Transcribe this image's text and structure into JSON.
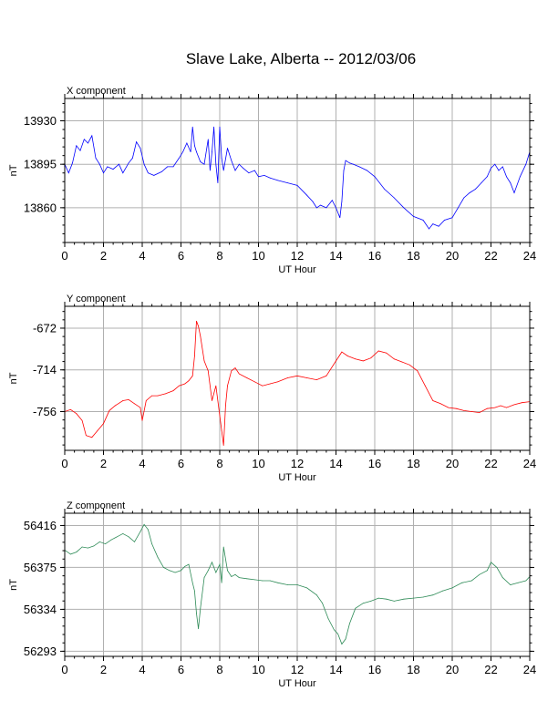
{
  "title": "Slave Lake, Alberta -- 2012/03/06",
  "chart_data": [
    {
      "type": "line",
      "title": "X component",
      "xlabel": "UT Hour",
      "ylabel": "nT",
      "xlim": [
        0,
        24
      ],
      "ylim": [
        13832,
        13948
      ],
      "xticks": [
        0,
        2,
        4,
        6,
        8,
        10,
        12,
        14,
        16,
        18,
        20,
        22,
        24
      ],
      "yticks": [
        13930,
        13895,
        13860
      ],
      "grid": true,
      "color": "#0000ff",
      "series": [
        {
          "x": [
            0,
            0.2,
            0.4,
            0.6,
            0.8,
            1.0,
            1.2,
            1.4,
            1.6,
            1.8,
            2.0,
            2.2,
            2.5,
            2.8,
            3.0,
            3.3,
            3.5,
            3.7,
            3.9,
            4.1,
            4.3,
            4.6,
            5.0,
            5.3,
            5.6,
            5.9,
            6.1,
            6.3,
            6.5,
            6.6,
            6.7,
            6.8,
            7.0,
            7.2,
            7.4,
            7.5,
            7.6,
            7.7,
            7.8,
            7.9,
            8.0,
            8.1,
            8.2,
            8.4,
            8.6,
            8.8,
            9.0,
            9.2,
            9.5,
            9.8,
            10.0,
            10.3,
            10.6,
            11.0,
            11.5,
            12.0,
            12.5,
            12.8,
            13.0,
            13.2,
            13.5,
            13.8,
            14.0,
            14.2,
            14.3,
            14.4,
            14.5,
            14.7,
            14.9,
            15.2,
            15.6,
            16.0,
            16.5,
            17.0,
            17.5,
            18.0,
            18.5,
            18.8,
            19.0,
            19.3,
            19.6,
            20.0,
            20.3,
            20.6,
            20.9,
            21.2,
            21.5,
            21.8,
            22.0,
            22.2,
            22.4,
            22.6,
            22.8,
            23.0,
            23.2,
            23.5,
            23.8,
            24.0
          ],
          "values": [
            13895,
            13888,
            13896,
            13910,
            13906,
            13915,
            13912,
            13918,
            13900,
            13895,
            13888,
            13893,
            13891,
            13895,
            13888,
            13896,
            13900,
            13913,
            13908,
            13895,
            13888,
            13886,
            13889,
            13893,
            13893,
            13900,
            13905,
            13912,
            13905,
            13925,
            13910,
            13905,
            13897,
            13895,
            13915,
            13890,
            13905,
            13925,
            13895,
            13880,
            13925,
            13900,
            13890,
            13908,
            13898,
            13890,
            13895,
            13892,
            13888,
            13890,
            13885,
            13886,
            13884,
            13882,
            13880,
            13878,
            13870,
            13865,
            13860,
            13862,
            13860,
            13866,
            13860,
            13852,
            13865,
            13890,
            13898,
            13896,
            13895,
            13893,
            13890,
            13885,
            13875,
            13868,
            13860,
            13853,
            13850,
            13843,
            13847,
            13845,
            13850,
            13852,
            13860,
            13868,
            13872,
            13875,
            13880,
            13885,
            13892,
            13895,
            13890,
            13893,
            13885,
            13880,
            13872,
            13885,
            13895,
            13905
          ]
        }
      ]
    },
    {
      "type": "line",
      "title": "Y component",
      "xlabel": "UT Hour",
      "ylabel": "nT",
      "xlim": [
        0,
        24
      ],
      "ylim": [
        -795,
        -650
      ],
      "xticks": [
        0,
        2,
        4,
        6,
        8,
        10,
        12,
        14,
        16,
        18,
        20,
        22,
        24
      ],
      "yticks": [
        -672,
        -714,
        -756
      ],
      "grid": true,
      "color": "#ff0000",
      "series": [
        {
          "x": [
            0,
            0.3,
            0.6,
            0.9,
            1.1,
            1.4,
            1.7,
            2.0,
            2.3,
            2.6,
            3.0,
            3.3,
            3.6,
            3.9,
            4.0,
            4.2,
            4.5,
            4.8,
            5.2,
            5.6,
            5.9,
            6.2,
            6.4,
            6.6,
            6.7,
            6.8,
            6.9,
            7.0,
            7.2,
            7.4,
            7.6,
            7.8,
            8.0,
            8.1,
            8.2,
            8.3,
            8.4,
            8.6,
            8.8,
            9.0,
            9.4,
            9.8,
            10.2,
            10.6,
            11.0,
            11.5,
            12.0,
            12.5,
            13.0,
            13.5,
            14.0,
            14.3,
            14.6,
            15.0,
            15.4,
            15.8,
            16.2,
            16.6,
            17.0,
            17.4,
            17.8,
            18.2,
            18.6,
            19.0,
            19.4,
            19.8,
            20.2,
            20.6,
            21.0,
            21.4,
            21.8,
            22.2,
            22.5,
            22.8,
            23.2,
            23.6,
            24.0
          ],
          "values": [
            -756,
            -754,
            -758,
            -765,
            -780,
            -782,
            -775,
            -768,
            -755,
            -750,
            -745,
            -744,
            -748,
            -752,
            -765,
            -745,
            -740,
            -740,
            -738,
            -735,
            -730,
            -728,
            -725,
            -720,
            -700,
            -665,
            -670,
            -680,
            -705,
            -715,
            -745,
            -730,
            -760,
            -775,
            -790,
            -750,
            -730,
            -715,
            -712,
            -718,
            -722,
            -726,
            -730,
            -728,
            -726,
            -722,
            -720,
            -722,
            -724,
            -720,
            -705,
            -696,
            -700,
            -703,
            -705,
            -702,
            -695,
            -697,
            -703,
            -706,
            -709,
            -715,
            -730,
            -745,
            -748,
            -752,
            -753,
            -755,
            -756,
            -757,
            -753,
            -752,
            -750,
            -752,
            -749,
            -747,
            -746
          ]
        }
      ]
    },
    {
      "type": "line",
      "title": "Z component",
      "xlabel": "UT Hour",
      "ylabel": "nT",
      "xlim": [
        0,
        24
      ],
      "ylim": [
        56288,
        56428
      ],
      "xticks": [
        0,
        2,
        4,
        6,
        8,
        10,
        12,
        14,
        16,
        18,
        20,
        22,
        24
      ],
      "yticks": [
        56416,
        56375,
        56334,
        56293
      ],
      "grid": true,
      "color": "#2e8b57",
      "series": [
        {
          "x": [
            0,
            0.3,
            0.6,
            0.9,
            1.2,
            1.5,
            1.8,
            2.1,
            2.4,
            2.7,
            3.0,
            3.3,
            3.6,
            3.9,
            4.1,
            4.3,
            4.5,
            4.8,
            5.1,
            5.4,
            5.7,
            6.0,
            6.2,
            6.4,
            6.6,
            6.7,
            6.8,
            6.9,
            7.0,
            7.2,
            7.4,
            7.6,
            7.8,
            8.0,
            8.1,
            8.2,
            8.4,
            8.6,
            8.8,
            9.0,
            9.4,
            9.8,
            10.2,
            10.6,
            11.0,
            11.5,
            12.0,
            12.5,
            13.0,
            13.3,
            13.6,
            13.9,
            14.1,
            14.3,
            14.5,
            14.7,
            15.0,
            15.4,
            15.8,
            16.2,
            16.6,
            17.0,
            17.5,
            18.0,
            18.5,
            19.0,
            19.5,
            20.0,
            20.5,
            21.0,
            21.4,
            21.8,
            22.0,
            22.3,
            22.6,
            23.0,
            23.4,
            23.8,
            24.0
          ],
          "values": [
            56392,
            56388,
            56390,
            56395,
            56394,
            56396,
            56400,
            56398,
            56402,
            56405,
            56408,
            56405,
            56400,
            56410,
            56417,
            56412,
            56398,
            56385,
            56375,
            56372,
            56370,
            56372,
            56376,
            56378,
            56360,
            56352,
            56330,
            56315,
            56335,
            56365,
            56372,
            56380,
            56370,
            56378,
            56360,
            56395,
            56372,
            56366,
            56368,
            56365,
            56364,
            56363,
            56362,
            56362,
            56360,
            56358,
            56358,
            56355,
            56348,
            56340,
            56325,
            56314,
            56310,
            56300,
            56305,
            56320,
            56335,
            56340,
            56342,
            56345,
            56344,
            56342,
            56344,
            56345,
            56346,
            56348,
            56352,
            56355,
            56360,
            56362,
            56368,
            56372,
            56380,
            56375,
            56365,
            56358,
            56360,
            56362,
            56366
          ]
        }
      ]
    }
  ]
}
